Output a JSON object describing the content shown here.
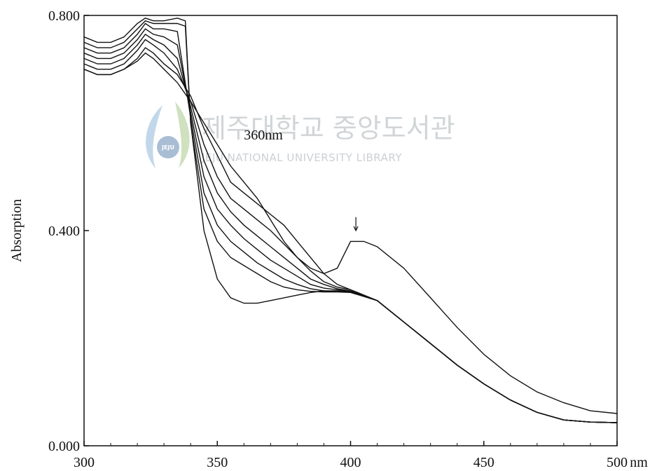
{
  "chart_data": {
    "type": "line",
    "title": "",
    "xlabel": "",
    "x_unit_label": "nm",
    "ylabel": "Absorption",
    "xlim": [
      300,
      500
    ],
    "ylim": [
      0,
      0.8
    ],
    "x_ticks": [
      300,
      350,
      400,
      450,
      500
    ],
    "x_tick_labels": [
      "300",
      "350",
      "400",
      "450",
      "500"
    ],
    "y_ticks": [
      0,
      0.4,
      0.8
    ],
    "y_tick_labels": [
      "0.000",
      "0.400",
      "0.800"
    ],
    "grid": false,
    "legend": "none",
    "annotations": [
      {
        "text": "360nm",
        "x": 360,
        "y": 0.58
      },
      {
        "type": "arrow-down",
        "x": 402,
        "y_from": 0.425,
        "y_to": 0.4
      }
    ],
    "watermark": {
      "korean": "제주대학교 중앙도서관",
      "english": "JEJU NATIONAL UNIVERSITY LIBRARY",
      "badge": "JEJU"
    },
    "series": [
      {
        "points": [
          [
            300,
            0.7
          ],
          [
            305,
            0.69
          ],
          [
            310,
            0.69
          ],
          [
            315,
            0.7
          ],
          [
            320,
            0.72
          ],
          [
            323,
            0.74
          ],
          [
            326,
            0.73
          ],
          [
            330,
            0.71
          ],
          [
            335,
            0.69
          ],
          [
            340,
            0.65
          ],
          [
            345,
            0.59
          ],
          [
            350,
            0.54
          ],
          [
            355,
            0.49
          ],
          [
            360,
            0.47
          ],
          [
            365,
            0.45
          ],
          [
            370,
            0.43
          ],
          [
            375,
            0.41
          ],
          [
            380,
            0.38
          ],
          [
            385,
            0.35
          ],
          [
            390,
            0.32
          ],
          [
            395,
            0.3
          ],
          [
            400,
            0.29
          ],
          [
            410,
            0.27
          ],
          [
            420,
            0.23
          ],
          [
            430,
            0.19
          ],
          [
            440,
            0.15
          ],
          [
            450,
            0.115
          ],
          [
            460,
            0.085
          ],
          [
            470,
            0.062
          ],
          [
            480,
            0.048
          ],
          [
            490,
            0.044
          ],
          [
            500,
            0.043
          ]
        ]
      },
      {
        "points": [
          [
            300,
            0.71
          ],
          [
            305,
            0.7
          ],
          [
            310,
            0.7
          ],
          [
            315,
            0.71
          ],
          [
            320,
            0.735
          ],
          [
            323,
            0.755
          ],
          [
            326,
            0.745
          ],
          [
            330,
            0.73
          ],
          [
            335,
            0.7
          ],
          [
            340,
            0.64
          ],
          [
            345,
            0.56
          ],
          [
            350,
            0.5
          ],
          [
            355,
            0.46
          ],
          [
            360,
            0.44
          ],
          [
            365,
            0.42
          ],
          [
            370,
            0.4
          ],
          [
            375,
            0.375
          ],
          [
            380,
            0.35
          ],
          [
            385,
            0.325
          ],
          [
            390,
            0.305
          ],
          [
            395,
            0.295
          ],
          [
            400,
            0.29
          ],
          [
            410,
            0.27
          ],
          [
            420,
            0.23
          ],
          [
            430,
            0.19
          ],
          [
            440,
            0.15
          ],
          [
            450,
            0.115
          ],
          [
            460,
            0.085
          ],
          [
            470,
            0.062
          ],
          [
            480,
            0.048
          ],
          [
            490,
            0.044
          ],
          [
            500,
            0.043
          ]
        ]
      },
      {
        "points": [
          [
            300,
            0.72
          ],
          [
            305,
            0.71
          ],
          [
            310,
            0.71
          ],
          [
            315,
            0.72
          ],
          [
            320,
            0.745
          ],
          [
            323,
            0.765
          ],
          [
            326,
            0.755
          ],
          [
            330,
            0.745
          ],
          [
            335,
            0.72
          ],
          [
            340,
            0.63
          ],
          [
            345,
            0.53
          ],
          [
            350,
            0.47
          ],
          [
            355,
            0.435
          ],
          [
            360,
            0.41
          ],
          [
            365,
            0.39
          ],
          [
            370,
            0.37
          ],
          [
            375,
            0.35
          ],
          [
            380,
            0.33
          ],
          [
            385,
            0.31
          ],
          [
            390,
            0.3
          ],
          [
            395,
            0.292
          ],
          [
            400,
            0.288
          ],
          [
            410,
            0.27
          ],
          [
            420,
            0.23
          ],
          [
            430,
            0.19
          ],
          [
            440,
            0.15
          ],
          [
            450,
            0.115
          ],
          [
            460,
            0.085
          ],
          [
            470,
            0.062
          ],
          [
            480,
            0.048
          ],
          [
            490,
            0.044
          ],
          [
            500,
            0.043
          ]
        ]
      },
      {
        "points": [
          [
            300,
            0.73
          ],
          [
            305,
            0.72
          ],
          [
            310,
            0.72
          ],
          [
            315,
            0.73
          ],
          [
            320,
            0.755
          ],
          [
            323,
            0.775
          ],
          [
            326,
            0.765
          ],
          [
            330,
            0.76
          ],
          [
            335,
            0.745
          ],
          [
            340,
            0.62
          ],
          [
            345,
            0.5
          ],
          [
            350,
            0.44
          ],
          [
            355,
            0.41
          ],
          [
            360,
            0.385
          ],
          [
            365,
            0.365
          ],
          [
            370,
            0.345
          ],
          [
            375,
            0.33
          ],
          [
            380,
            0.315
          ],
          [
            385,
            0.3
          ],
          [
            390,
            0.293
          ],
          [
            395,
            0.29
          ],
          [
            400,
            0.287
          ],
          [
            410,
            0.27
          ],
          [
            420,
            0.23
          ],
          [
            430,
            0.19
          ],
          [
            440,
            0.15
          ],
          [
            450,
            0.115
          ],
          [
            460,
            0.085
          ],
          [
            470,
            0.062
          ],
          [
            480,
            0.048
          ],
          [
            490,
            0.044
          ],
          [
            500,
            0.043
          ]
        ]
      },
      {
        "points": [
          [
            300,
            0.74
          ],
          [
            305,
            0.73
          ],
          [
            310,
            0.73
          ],
          [
            315,
            0.74
          ],
          [
            320,
            0.765
          ],
          [
            323,
            0.785
          ],
          [
            326,
            0.775
          ],
          [
            330,
            0.775
          ],
          [
            335,
            0.77
          ],
          [
            340,
            0.61
          ],
          [
            345,
            0.47
          ],
          [
            350,
            0.41
          ],
          [
            355,
            0.38
          ],
          [
            360,
            0.36
          ],
          [
            365,
            0.34
          ],
          [
            370,
            0.325
          ],
          [
            375,
            0.31
          ],
          [
            380,
            0.3
          ],
          [
            385,
            0.292
          ],
          [
            390,
            0.288
          ],
          [
            395,
            0.287
          ],
          [
            400,
            0.286
          ],
          [
            410,
            0.27
          ],
          [
            420,
            0.23
          ],
          [
            430,
            0.19
          ],
          [
            440,
            0.15
          ],
          [
            450,
            0.115
          ],
          [
            460,
            0.085
          ],
          [
            470,
            0.062
          ],
          [
            480,
            0.048
          ],
          [
            490,
            0.044
          ],
          [
            500,
            0.043
          ]
        ]
      },
      {
        "points": [
          [
            300,
            0.75
          ],
          [
            305,
            0.74
          ],
          [
            310,
            0.74
          ],
          [
            315,
            0.75
          ],
          [
            320,
            0.775
          ],
          [
            323,
            0.79
          ],
          [
            326,
            0.785
          ],
          [
            330,
            0.785
          ],
          [
            335,
            0.785
          ],
          [
            338,
            0.78
          ],
          [
            340,
            0.6
          ],
          [
            345,
            0.44
          ],
          [
            350,
            0.38
          ],
          [
            355,
            0.35
          ],
          [
            360,
            0.335
          ],
          [
            365,
            0.32
          ],
          [
            370,
            0.305
          ],
          [
            375,
            0.295
          ],
          [
            380,
            0.29
          ],
          [
            385,
            0.287
          ],
          [
            390,
            0.286
          ],
          [
            395,
            0.286
          ],
          [
            400,
            0.285
          ],
          [
            410,
            0.27
          ],
          [
            420,
            0.23
          ],
          [
            430,
            0.19
          ],
          [
            440,
            0.15
          ],
          [
            450,
            0.115
          ],
          [
            460,
            0.085
          ],
          [
            470,
            0.062
          ],
          [
            480,
            0.048
          ],
          [
            490,
            0.044
          ],
          [
            500,
            0.043
          ]
        ]
      },
      {
        "points": [
          [
            300,
            0.76
          ],
          [
            305,
            0.75
          ],
          [
            310,
            0.75
          ],
          [
            315,
            0.76
          ],
          [
            320,
            0.785
          ],
          [
            323,
            0.795
          ],
          [
            326,
            0.79
          ],
          [
            330,
            0.79
          ],
          [
            335,
            0.795
          ],
          [
            338,
            0.79
          ],
          [
            340,
            0.6
          ],
          [
            345,
            0.4
          ],
          [
            350,
            0.31
          ],
          [
            355,
            0.275
          ],
          [
            360,
            0.265
          ],
          [
            365,
            0.265
          ],
          [
            370,
            0.27
          ],
          [
            375,
            0.275
          ],
          [
            380,
            0.28
          ],
          [
            385,
            0.285
          ],
          [
            390,
            0.288
          ],
          [
            395,
            0.288
          ],
          [
            400,
            0.286
          ],
          [
            410,
            0.27
          ],
          [
            420,
            0.23
          ],
          [
            430,
            0.19
          ],
          [
            440,
            0.15
          ],
          [
            450,
            0.115
          ],
          [
            460,
            0.085
          ],
          [
            470,
            0.062
          ],
          [
            480,
            0.048
          ],
          [
            490,
            0.044
          ],
          [
            500,
            0.043
          ]
        ]
      },
      {
        "points": [
          [
            300,
            0.7
          ],
          [
            305,
            0.69
          ],
          [
            310,
            0.69
          ],
          [
            315,
            0.7
          ],
          [
            320,
            0.715
          ],
          [
            323,
            0.73
          ],
          [
            326,
            0.72
          ],
          [
            330,
            0.7
          ],
          [
            335,
            0.675
          ],
          [
            340,
            0.64
          ],
          [
            345,
            0.6
          ],
          [
            350,
            0.56
          ],
          [
            355,
            0.52
          ],
          [
            360,
            0.49
          ],
          [
            365,
            0.46
          ],
          [
            370,
            0.42
          ],
          [
            375,
            0.38
          ],
          [
            380,
            0.35
          ],
          [
            385,
            0.33
          ],
          [
            390,
            0.32
          ],
          [
            395,
            0.33
          ],
          [
            400,
            0.38
          ],
          [
            405,
            0.38
          ],
          [
            410,
            0.37
          ],
          [
            420,
            0.33
          ],
          [
            430,
            0.275
          ],
          [
            440,
            0.22
          ],
          [
            450,
            0.17
          ],
          [
            460,
            0.13
          ],
          [
            470,
            0.1
          ],
          [
            480,
            0.08
          ],
          [
            490,
            0.065
          ],
          [
            500,
            0.06
          ]
        ]
      }
    ]
  }
}
